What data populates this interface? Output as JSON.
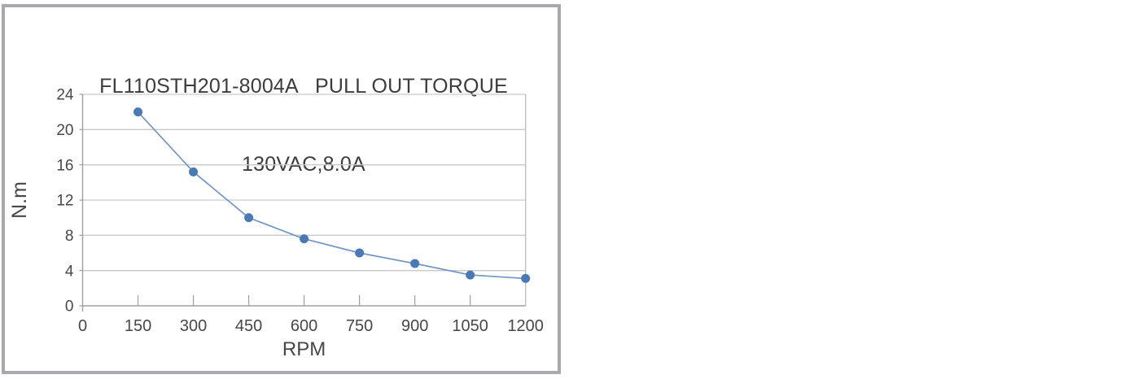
{
  "frame": {
    "border_color": "#a9a9ad",
    "background": "#ffffff"
  },
  "chart_data": {
    "type": "line",
    "title_line1": "FL110STH201-8004A   PULL OUT TORQUE",
    "title_line2": "130VAC,8.0A",
    "xlabel": "RPM",
    "ylabel": "N.m",
    "x": [
      150,
      300,
      450,
      600,
      750,
      900,
      1050,
      1200
    ],
    "values": [
      22,
      15.2,
      10,
      7.6,
      6,
      4.8,
      3.5,
      3.1
    ],
    "series_name": "Pull out torque",
    "x_ticks": [
      0,
      150,
      300,
      450,
      600,
      750,
      900,
      1050,
      1200
    ],
    "y_ticks": [
      0,
      4,
      8,
      12,
      16,
      20,
      24
    ],
    "xlim": [
      0,
      1200
    ],
    "ylim": [
      0,
      24
    ],
    "grid": "horizontal",
    "legend": "none",
    "colors": {
      "line": "#7295c5",
      "marker": "#4a7ab5",
      "grid": "#c9c9c9",
      "axis": "#9e9ea2",
      "plot_border": "#bcbcbe",
      "tick_text": "#474747",
      "title_text": "#3c3c3c"
    }
  }
}
